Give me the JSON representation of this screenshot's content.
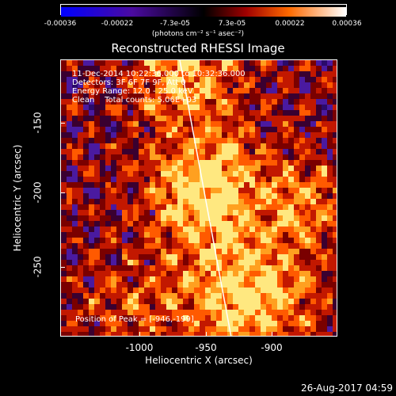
{
  "colorbar": {
    "ticks": [
      "-0.00036",
      "-0.00022",
      "-7.3e-05",
      "7.3e-05",
      "0.00022",
      "0.00036"
    ],
    "units": "(photons cm⁻² s⁻¹ asec⁻²)"
  },
  "title": "Reconstructed RHESSI Image",
  "info": {
    "time": "11-Dec-2014 10:22:36.000 to 10:32:36.000",
    "detectors": "Detectors: 3F 6F 7F 9F, Att 0",
    "energy": "Energy Range: 12.0 - 25.0 keV",
    "clean": "Clean    Total counts: 5.06E+03",
    "peak": "Position of Peak = [-946,-199]"
  },
  "axes": {
    "xlabel": "Heliocentric X (arcsec)",
    "ylabel": "Heliocentric Y (arcsec)",
    "xticks": [
      "-1000",
      "-950",
      "-900"
    ],
    "yticks": [
      "-150",
      "-200",
      "-250"
    ]
  },
  "timestamp": "26-Aug-2017 04:59"
}
